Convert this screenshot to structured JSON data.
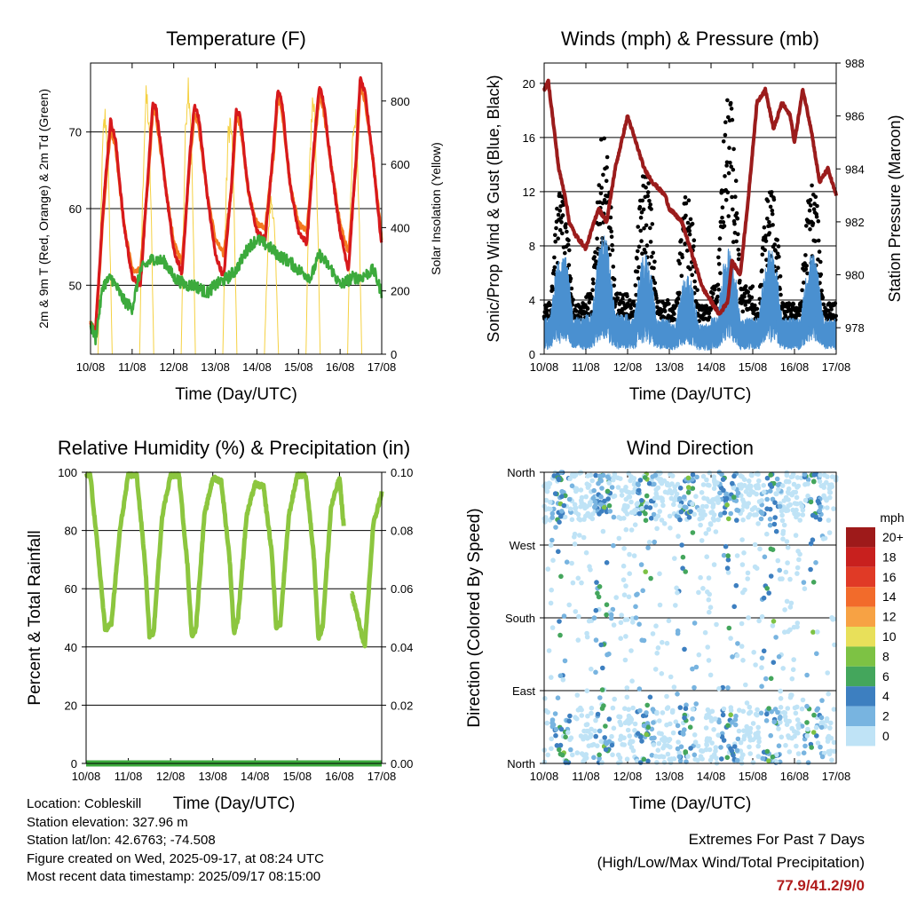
{
  "x_ticks": [
    "10/08",
    "11/08",
    "12/08",
    "13/08",
    "14/08",
    "15/08",
    "16/08",
    "17/08"
  ],
  "x_axis_label": "Time (Day/UTC)",
  "chart_data": [
    {
      "type": "line",
      "title": "Temperature (F)",
      "ylabel": "2m & 9m T (Red, Orange) & 2m Td (Green)",
      "y2label": "Solar Insolation (Yellow)",
      "xlabel": "Time (Day/UTC)",
      "ylim": [
        41,
        79
      ],
      "y2lim": [
        0,
        920
      ],
      "yticks": [
        50,
        60,
        70
      ],
      "y2ticks": [
        0,
        200,
        400,
        600,
        800
      ],
      "grid": true,
      "series": [
        {
          "name": "2m T",
          "color": "#d7191c",
          "x": [
            0,
            0.12,
            0.3,
            0.48,
            0.6,
            0.8,
            1.0,
            1.2,
            1.4,
            1.5,
            1.58,
            1.8,
            2.0,
            2.2,
            2.4,
            2.5,
            2.6,
            2.8,
            3.0,
            3.2,
            3.4,
            3.5,
            3.6,
            3.8,
            4.0,
            4.2,
            4.4,
            4.5,
            4.6,
            4.8,
            5.0,
            5.2,
            5.4,
            5.5,
            5.6,
            5.8,
            6.0,
            6.2,
            6.4,
            6.48,
            6.6,
            6.8,
            7.0
          ],
          "y": [
            45,
            44,
            60,
            71.5,
            69,
            58,
            51,
            50,
            66,
            74,
            73,
            63,
            54.5,
            51.5,
            68,
            73.5,
            72,
            62,
            54,
            51,
            64,
            73,
            72,
            62,
            57,
            56,
            68,
            75.5,
            74,
            63,
            57,
            55.5,
            70,
            76,
            74,
            65,
            57,
            52,
            68,
            77,
            75,
            66,
            55
          ]
        },
        {
          "name": "9m T",
          "color": "#f47a20",
          "x": [
            0,
            0.12,
            0.3,
            0.48,
            0.6,
            0.8,
            1.0,
            1.2,
            1.4,
            1.5,
            1.58,
            1.8,
            2.0,
            2.2,
            2.4,
            2.5,
            2.6,
            2.8,
            3.0,
            3.2,
            3.4,
            3.5,
            3.6,
            3.8,
            4.0,
            4.2,
            4.4,
            4.5,
            4.6,
            4.8,
            5.0,
            5.2,
            5.4,
            5.5,
            5.6,
            5.8,
            6.0,
            6.2,
            6.4,
            6.48,
            6.6,
            6.8,
            7.0
          ],
          "y": [
            45,
            44,
            59,
            70.5,
            68,
            58,
            52,
            52,
            65,
            73,
            72,
            63,
            55.5,
            53,
            67,
            72.5,
            71,
            62,
            56,
            54,
            63,
            72,
            71,
            62,
            58,
            57.5,
            67,
            74.5,
            73,
            63,
            58,
            57,
            69,
            75,
            73,
            65,
            58,
            54,
            67,
            76,
            74,
            66,
            56
          ]
        },
        {
          "name": "2m Td",
          "color": "#3caa3c",
          "x": [
            0,
            0.12,
            0.3,
            0.5,
            0.8,
            1.0,
            1.2,
            1.5,
            1.8,
            2.0,
            2.3,
            2.5,
            2.8,
            3.0,
            3.3,
            3.5,
            3.8,
            4.0,
            4.3,
            4.5,
            4.8,
            5.0,
            5.3,
            5.5,
            5.8,
            6.0,
            6.3,
            6.5,
            6.8,
            7.0
          ],
          "y": [
            45,
            43,
            50,
            51,
            48,
            47,
            52,
            53.5,
            53,
            51,
            50,
            50,
            49,
            50,
            51,
            52,
            55,
            56,
            55,
            54,
            53,
            52,
            51,
            54,
            52,
            50,
            51,
            51,
            52,
            49
          ]
        },
        {
          "name": "Solar",
          "color": "#f5d142",
          "axis": "y2",
          "days": [
            0,
            1,
            2,
            3,
            4,
            5,
            6
          ],
          "peaks": [
            800,
            860,
            920,
            790,
            520,
            860,
            830
          ]
        }
      ]
    },
    {
      "type": "scatter",
      "title": "Winds (mph) & Pressure (mb)",
      "ylabel": "Sonic/Prop Wind & Gust (Blue, Black)",
      "y2label": "Station Pressure (Maroon)",
      "xlabel": "Time (Day/UTC)",
      "ylim": [
        0,
        21.5
      ],
      "y2lim": [
        977,
        988
      ],
      "yticks": [
        0,
        4,
        8,
        12,
        16,
        20
      ],
      "y2ticks": [
        978,
        980,
        982,
        984,
        986,
        988
      ],
      "grid": true,
      "series": [
        {
          "name": "Wind",
          "color": "#4a90d0",
          "daily_peaks": [
            8,
            9,
            7.5,
            6,
            8,
            8,
            7.5
          ],
          "max": 9
        },
        {
          "name": "Gust",
          "color": "#000000",
          "daily_peaks": [
            13,
            16.5,
            14,
            12,
            19.3,
            13,
            13
          ],
          "max": 19.3
        },
        {
          "name": "Pressure",
          "color": "#9b1c1c",
          "x": [
            0,
            0.1,
            0.2,
            0.35,
            0.5,
            0.6,
            0.75,
            1.0,
            1.3,
            1.5,
            1.7,
            2.0,
            2.2,
            2.4,
            2.6,
            2.9,
            3.0,
            3.3,
            3.5,
            3.8,
            4.0,
            4.2,
            4.4,
            4.5,
            4.7,
            4.9,
            5.1,
            5.3,
            5.5,
            5.7,
            5.9,
            6.0,
            6.2,
            6.4,
            6.6,
            6.8,
            7.0
          ],
          "y": [
            987.0,
            987.3,
            986.0,
            984.0,
            983.0,
            982.0,
            981.5,
            981.0,
            982.5,
            982.0,
            984.0,
            986.0,
            985.0,
            984.0,
            983.5,
            983.0,
            982.5,
            982.0,
            981.0,
            979.5,
            979.0,
            978.5,
            979.0,
            980.5,
            980.0,
            983.0,
            986.5,
            987.0,
            985.5,
            986.5,
            986.0,
            985.0,
            987.0,
            985.5,
            983.5,
            984.0,
            983.0
          ]
        }
      ]
    },
    {
      "type": "line",
      "title": "Relative Humidity (%) & Precipitation (in)",
      "ylabel": "Percent & Total Rainfall",
      "xlabel": "Time (Day/UTC)",
      "ylim": [
        0,
        100
      ],
      "y2lim": [
        0,
        0.1
      ],
      "yticks": [
        0,
        20,
        40,
        60,
        80,
        100
      ],
      "y2ticks": [
        "0.00",
        "0.02",
        "0.04",
        "0.06",
        "0.08",
        "0.10"
      ],
      "grid": true,
      "series": [
        {
          "name": "RH",
          "color": "#8cc63f",
          "x": [
            0,
            0.1,
            0.3,
            0.45,
            0.6,
            0.8,
            1.0,
            1.2,
            1.4,
            1.5,
            1.6,
            1.8,
            2.0,
            2.2,
            2.4,
            2.5,
            2.6,
            2.8,
            3.0,
            3.2,
            3.4,
            3.5,
            3.6,
            3.8,
            4.0,
            4.2,
            4.4,
            4.5,
            4.6,
            4.8,
            5.0,
            5.2,
            5.4,
            5.5,
            5.6,
            5.8,
            6.0,
            6.2,
            6.3,
            6.6,
            6.8,
            7.0
          ],
          "y": [
            99,
            99,
            70,
            46,
            48,
            80,
            99,
            99,
            68,
            44,
            45,
            85,
            99,
            99,
            68,
            44,
            46,
            85,
            98,
            97,
            70,
            45,
            50,
            85,
            96,
            95,
            72,
            47,
            48,
            85,
            99,
            99,
            70,
            43,
            47,
            88,
            98,
            65,
            58,
            40,
            82,
            93
          ]
        },
        {
          "name": "Precip",
          "color": "#3caa3c",
          "axis": "y2",
          "x": [
            0,
            7
          ],
          "y": [
            0,
            0
          ]
        }
      ]
    },
    {
      "type": "scatter",
      "title": "Wind Direction",
      "ylabel": "Direction (Colored By Speed)",
      "xlabel": "Time (Day/UTC)",
      "ylim": [
        0,
        360
      ],
      "yticks": [
        "North",
        "East",
        "South",
        "West",
        "North"
      ],
      "grid": true,
      "colorbar": {
        "title": "mph",
        "labels": [
          "20+",
          "18",
          "16",
          "14",
          "12",
          "10",
          "8",
          "6",
          "4",
          "2",
          "0"
        ],
        "colors": [
          "#9e1a1a",
          "#c8201e",
          "#e03a26",
          "#f26b2b",
          "#f7a244",
          "#e8e05a",
          "#7dc244",
          "#44a65c",
          "#3d7fc0",
          "#78b4e0",
          "#bfe3f6"
        ]
      }
    }
  ],
  "info": {
    "location": "Location: Cobleskill",
    "elevation": "Station elevation: 327.96 m",
    "latlon": "Station lat/lon: 42.6763; -74.508",
    "created": "Figure created on Wed, 2025-09-17, at 08:24 UTC",
    "timestamp": "Most recent data timestamp: 2025/09/17 08:15:00"
  },
  "extremes": {
    "title": "Extremes For Past 7 Days",
    "subtitle": "(High/Low/Max Wind/Total Precipitation)",
    "values": "77.9/41.2/9/0"
  }
}
